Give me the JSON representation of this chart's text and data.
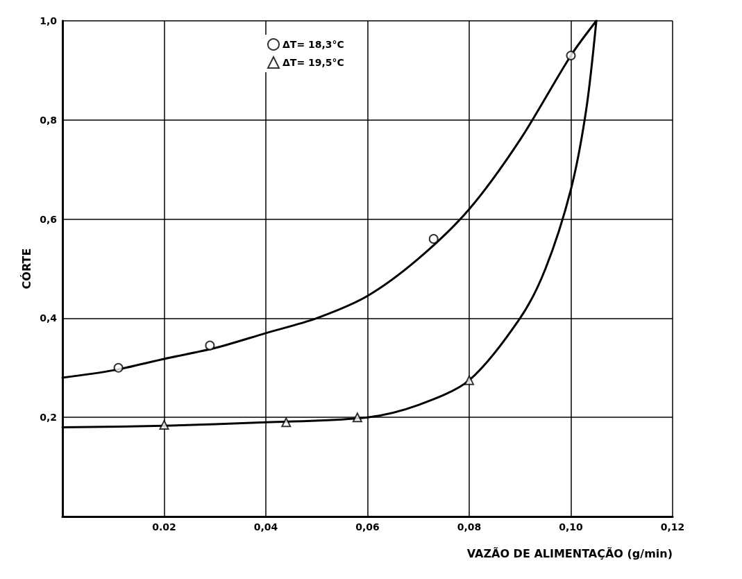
{
  "chart_data": {
    "type": "scatter",
    "xlabel": "VAZÃO DE ALIMENTAÇÃO (g/min)",
    "ylabel": "CÓRTE",
    "xlim": [
      0,
      0.12
    ],
    "xticks": [
      {
        "value": 0.02,
        "label": "0.02"
      },
      {
        "value": 0.04,
        "label": "0,04"
      },
      {
        "value": 0.06,
        "label": "0,06"
      },
      {
        "value": 0.08,
        "label": "0,08"
      },
      {
        "value": 0.1,
        "label": "0,10"
      },
      {
        "value": 0.12,
        "label": "0,12"
      }
    ],
    "ylim": [
      0,
      1
    ],
    "yticks": [
      {
        "value": 0.2,
        "label": "0,2"
      },
      {
        "value": 0.4,
        "label": "0,4"
      },
      {
        "value": 0.6,
        "label": "0,6"
      },
      {
        "value": 0.8,
        "label": "0,8"
      },
      {
        "value": 1,
        "label": "1,0"
      }
    ],
    "grid": true,
    "legend": "top",
    "series": [
      {
        "name": "ΔT= 18,3°C",
        "color": "#000000",
        "marker": "circle",
        "x": [
          0.011,
          0.029,
          0.073,
          0.1
        ],
        "values": [
          0.3,
          0.345,
          0.56,
          0.93
        ]
      },
      {
        "name": "ΔT= 19,5°C",
        "color": "#000000",
        "marker": "triangle",
        "x": [
          0.02,
          0.044,
          0.058,
          0.08
        ],
        "values": [
          0.185,
          0.19,
          0.2,
          0.275
        ]
      },
      {
        "type": "line",
        "color": "#000000",
        "marker": "none",
        "x": [
          0,
          0.01,
          0.02,
          0.03,
          0.04,
          0.05,
          0.06,
          0.07,
          0.08,
          0.09,
          0.1,
          0.105
        ],
        "values": [
          0.28,
          0.295,
          0.318,
          0.34,
          0.37,
          0.4,
          0.445,
          0.52,
          0.62,
          0.76,
          0.93,
          1.0
        ]
      },
      {
        "type": "line",
        "color": "#000000",
        "marker": "none",
        "x": [
          0,
          0.02,
          0.04,
          0.06,
          0.07,
          0.08,
          0.09,
          0.095,
          0.1,
          0.103,
          0.105
        ],
        "values": [
          0.18,
          0.183,
          0.19,
          0.2,
          0.225,
          0.275,
          0.4,
          0.5,
          0.66,
          0.82,
          1.0
        ]
      }
    ]
  }
}
